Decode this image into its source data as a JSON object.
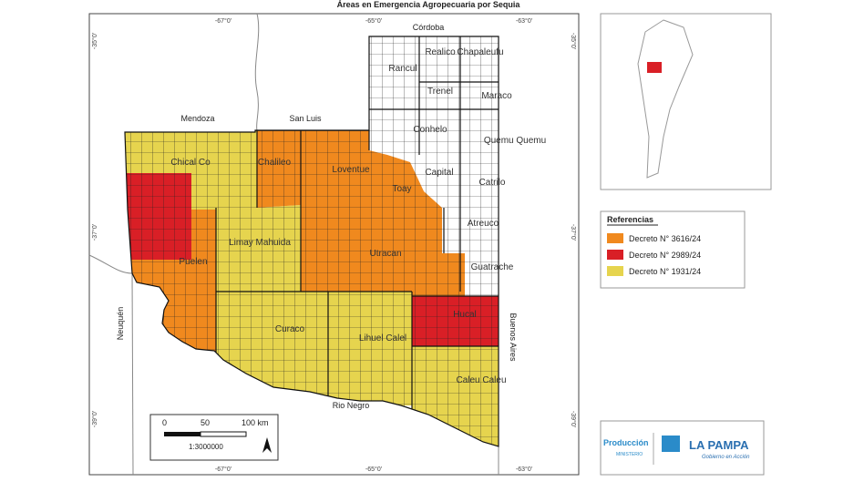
{
  "title": "Áreas en Emergencia Agropecuaria por Sequia",
  "graticule": {
    "top": [
      "-67°0'",
      "-65°0'",
      "-63°0'"
    ],
    "bottom": [
      "-67°0'",
      "-65°0'",
      "-63°0'"
    ],
    "left": [
      "-35°0'",
      "-37°0'",
      "-39°0'"
    ],
    "right": [
      "-35°0'",
      "-37°0'",
      "-39°0'"
    ]
  },
  "neighbors": [
    "Córdoba",
    "Mendoza",
    "San Luis",
    "Neuquén",
    "Buenos Aires",
    "Rio Negro"
  ],
  "departments": [
    "Rancul",
    "Realico",
    "Chapaleufu",
    "Trenel",
    "Maraco",
    "Conhelo",
    "Quemu Quemu",
    "Capital",
    "Catrilo",
    "Atreuco",
    "Guatrache",
    "Hucal",
    "Caleu Caleu",
    "Lihuel Calel",
    "Curaco",
    "Utracan",
    "Toay",
    "Loventue",
    "Chalileo",
    "Chical Co",
    "Puelen",
    "Limay Mahuida"
  ],
  "legend": {
    "title": "Referencias",
    "items": [
      {
        "label": "Decreto N° 3616/24",
        "color": "#f0891e"
      },
      {
        "label": "Decreto N° 2989/24",
        "color": "#d91f26"
      },
      {
        "label": "Decreto N° 1931/24",
        "color": "#e6d44e"
      }
    ]
  },
  "scale": {
    "labels": [
      "0",
      "50",
      "100 km"
    ],
    "ratio": "1:3000000"
  },
  "logo": {
    "ministry": "Producción",
    "ministry_sub": "MINISTERIO",
    "province": "LA PAMPA",
    "slogan": "Gobierno en Acción"
  }
}
